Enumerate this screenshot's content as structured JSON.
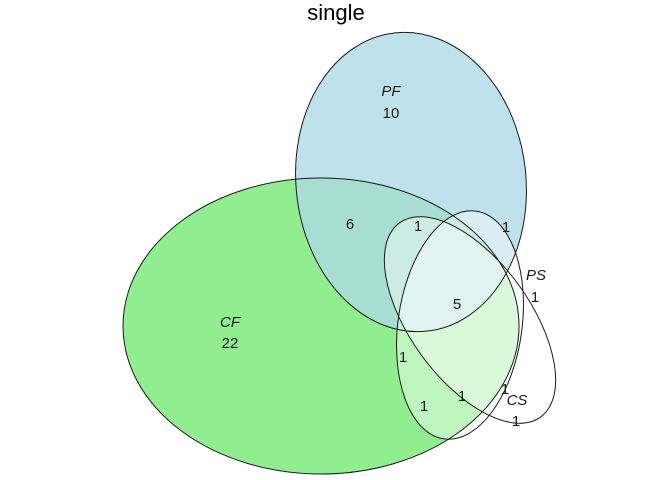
{
  "title": "single",
  "sets": {
    "PF": {
      "label": "PF",
      "count": "10",
      "color": "#add8e6"
    },
    "CF": {
      "label": "CF",
      "count": "22",
      "color": "#90ee90"
    },
    "PS": {
      "label": "PS",
      "count": "1",
      "color": "#ffffff"
    },
    "CS": {
      "label": "CS",
      "count": "1",
      "color": "#ffffff"
    }
  },
  "regions": {
    "cf_pf": "6",
    "cf_pf_cs": "1",
    "pf_ps": "1",
    "all_four": "5",
    "cf_cs": "1",
    "cf_ps_cs": "1",
    "cf_pf_ps": "1",
    "ps_cs": "1"
  },
  "outline_color": "#1a1a1a"
}
